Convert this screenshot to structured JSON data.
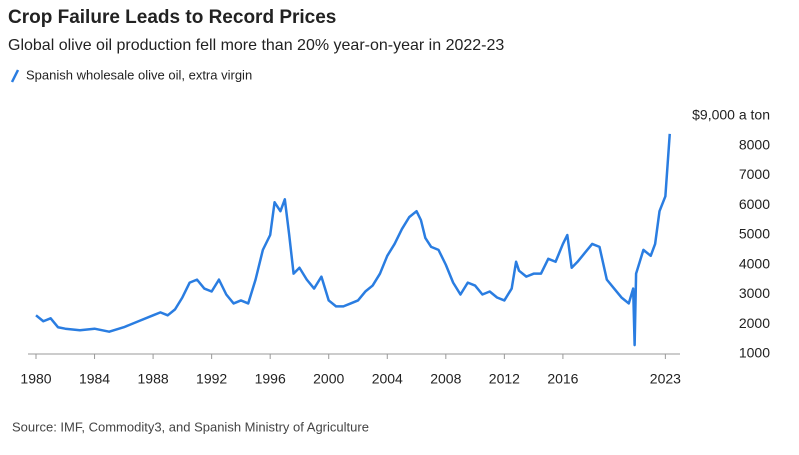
{
  "chart_data": {
    "type": "line",
    "title": "Crop Failure Leads to Record Prices",
    "subtitle": "Global olive oil production fell more than 20% year-on-year in 2022-23",
    "source": "Source: IMF, Commodity3, and Spanish Ministry of Agriculture",
    "x": [
      1980,
      1980.5,
      1981,
      1981.5,
      1982,
      1983,
      1984,
      1985,
      1986,
      1987,
      1988,
      1988.5,
      1989,
      1989.5,
      1990,
      1990.5,
      1991,
      1991.5,
      1992,
      1992.5,
      1993,
      1993.5,
      1994,
      1994.5,
      1995,
      1995.5,
      1996,
      1996.3,
      1996.7,
      1997,
      1997.3,
      1997.6,
      1998,
      1998.5,
      1999,
      1999.5,
      2000,
      2000.5,
      2001,
      2001.5,
      2002,
      2002.5,
      2003,
      2003.5,
      2004,
      2004.5,
      2005,
      2005.5,
      2006,
      2006.3,
      2006.6,
      2007,
      2007.5,
      2008,
      2008.5,
      2009,
      2009.5,
      2010,
      2010.5,
      2011,
      2011.5,
      2012,
      2012.5,
      2012.8,
      2013,
      2013.5,
      2014,
      2014.5,
      2015,
      2015.5,
      2016,
      2016.3,
      2016.6,
      2017,
      2017.5,
      2018,
      2018.5,
      2019,
      2019.5,
      2020,
      2020.5,
      2020.8,
      2020.9,
      2021,
      2021.5,
      2022,
      2022.3,
      2022.6,
      2023,
      2023.3
    ],
    "series": [
      {
        "name": "Spanish wholesale olive oil, extra virgin",
        "color": "#2a7de1",
        "values": [
          2300,
          2100,
          2200,
          1900,
          1850,
          1800,
          1850,
          1750,
          1900,
          2100,
          2300,
          2400,
          2300,
          2500,
          2900,
          3400,
          3500,
          3200,
          3100,
          3500,
          3000,
          2700,
          2800,
          2700,
          3500,
          4500,
          5000,
          6100,
          5800,
          6200,
          5000,
          3700,
          3900,
          3500,
          3200,
          3600,
          2800,
          2600,
          2600,
          2700,
          2800,
          3100,
          3300,
          3700,
          4300,
          4700,
          5200,
          5600,
          5800,
          5500,
          4900,
          4600,
          4500,
          4000,
          3400,
          3000,
          3400,
          3300,
          3000,
          3100,
          2900,
          2800,
          3200,
          4100,
          3800,
          3600,
          3700,
          3700,
          4200,
          4100,
          4700,
          5000,
          3900,
          4100,
          4400,
          4700,
          4600,
          3500,
          3200,
          2900,
          2700,
          3200,
          1300,
          3700,
          4500,
          4300,
          4700,
          5800,
          6300,
          8400
        ]
      }
    ],
    "xlim": [
      1980,
      2024
    ],
    "xticks": [
      1980,
      1984,
      1988,
      1992,
      1996,
      2000,
      2004,
      2008,
      2012,
      2016,
      2023
    ],
    "ylim": [
      1000,
      9000
    ],
    "yticks": [
      1000,
      2000,
      3000,
      4000,
      5000,
      6000,
      7000,
      8000,
      {
        "value": 9000,
        "label": "$9,000 a ton"
      }
    ]
  }
}
